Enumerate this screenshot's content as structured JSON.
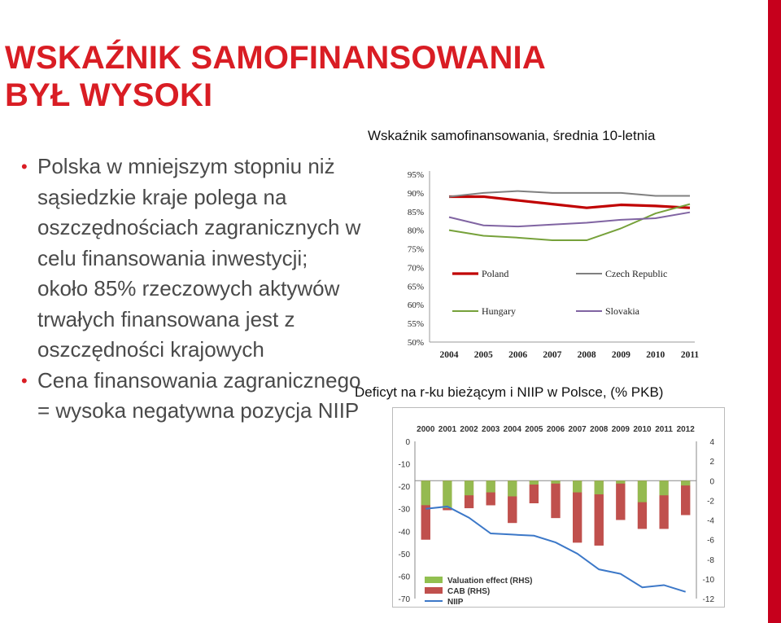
{
  "slide": {
    "title_line1": "WSKAŹNIK SAMOFINANSOWANIA",
    "title_line2": "BYŁ WYSOKI",
    "bullets": [
      "Polska w mniejszym stopniu niż sąsiedzkie kraje polega na oszczędnościach zagranicznych w celu finansowania inwestycji; około 85% rzeczowych aktywów trwałych finansowana jest z oszczędności krajowych",
      "Cena finansowania zagranicznego = wysoka negatywna pozycja NIIP"
    ],
    "accent_color": "#d91d24"
  },
  "chart_data": [
    {
      "type": "line",
      "title": "Wskaźnik samofinansowania, średnia 10-letnia",
      "x": [
        2004,
        2005,
        2006,
        2007,
        2008,
        2009,
        2010,
        2011
      ],
      "x_tick_labels": [
        "2004",
        "2005",
        "2006",
        "2007",
        "2008",
        "2009",
        "2010",
        "2011"
      ],
      "ylim": [
        50,
        95
      ],
      "y_ticks": [
        50,
        55,
        60,
        65,
        70,
        75,
        80,
        85,
        90,
        95
      ],
      "y_tick_labels": [
        "50%",
        "55%",
        "60%",
        "65%",
        "70%",
        "75%",
        "80%",
        "85%",
        "90%",
        "95%"
      ],
      "grid": false,
      "series": [
        {
          "name": "Poland",
          "color": "#c00000",
          "values": [
            89,
            89,
            88,
            87,
            86,
            86.8,
            86.5,
            86
          ]
        },
        {
          "name": "Czech Republic",
          "color": "#808080",
          "values": [
            89,
            90,
            90.5,
            90,
            90,
            90,
            89.2,
            89.2
          ]
        },
        {
          "name": "Hungary",
          "color": "#76a13a",
          "values": [
            80,
            78.5,
            78,
            77.3,
            77.3,
            80.5,
            84.5,
            87
          ]
        },
        {
          "name": "Slovakia",
          "color": "#8064a2",
          "values": [
            83.5,
            81.3,
            81,
            81.5,
            82,
            82.8,
            83.2,
            84.8
          ]
        }
      ]
    },
    {
      "type": "bar",
      "title": "Deficyt na r-ku bieżącym i NIIP w Polsce, (% PKB)",
      "x": [
        2000,
        2001,
        2002,
        2003,
        2004,
        2005,
        2006,
        2007,
        2008,
        2009,
        2010,
        2011,
        2012
      ],
      "x_tick_labels": [
        "2000",
        "2001",
        "2002",
        "2003",
        "2004",
        "2005",
        "2006",
        "2007",
        "2008",
        "2009",
        "2010",
        "2011",
        "2012"
      ],
      "y_left": {
        "ylim": [
          -70,
          0
        ],
        "ticks": [
          "0",
          "-10",
          "-20",
          "-30",
          "-40",
          "-50",
          "-60",
          "-70"
        ]
      },
      "y_right": {
        "ylim": [
          -12,
          4
        ],
        "ticks": [
          "4",
          "2",
          "0",
          "-2",
          "-4",
          "-6",
          "-8",
          "-10",
          "-12"
        ]
      },
      "legend_placement": "bottom-left",
      "series": [
        {
          "name": "Valuation effect (RHS)",
          "color": "#92c050",
          "values": [
            -2.5,
            -2.8,
            -1.5,
            -1.2,
            -1.6,
            -0.4,
            -0.3,
            -1.2,
            -1.4,
            -0.3,
            -2.2,
            -1.5,
            -0.5
          ]
        },
        {
          "name": "CAB (RHS)",
          "color": "#c0504d",
          "values": [
            -6,
            -3,
            -2.8,
            -2.5,
            -4.3,
            -2.3,
            -3.8,
            -6.3,
            -6.6,
            -4,
            -4.9,
            -4.9,
            -3.5
          ]
        },
        {
          "name": "NIIP",
          "color": "#3c78c8",
          "axis": "left",
          "values": [
            -30,
            -29,
            -34,
            -41,
            -41.5,
            -42,
            -45,
            -50,
            -57,
            -59,
            -65,
            -64,
            -67
          ]
        }
      ]
    }
  ]
}
